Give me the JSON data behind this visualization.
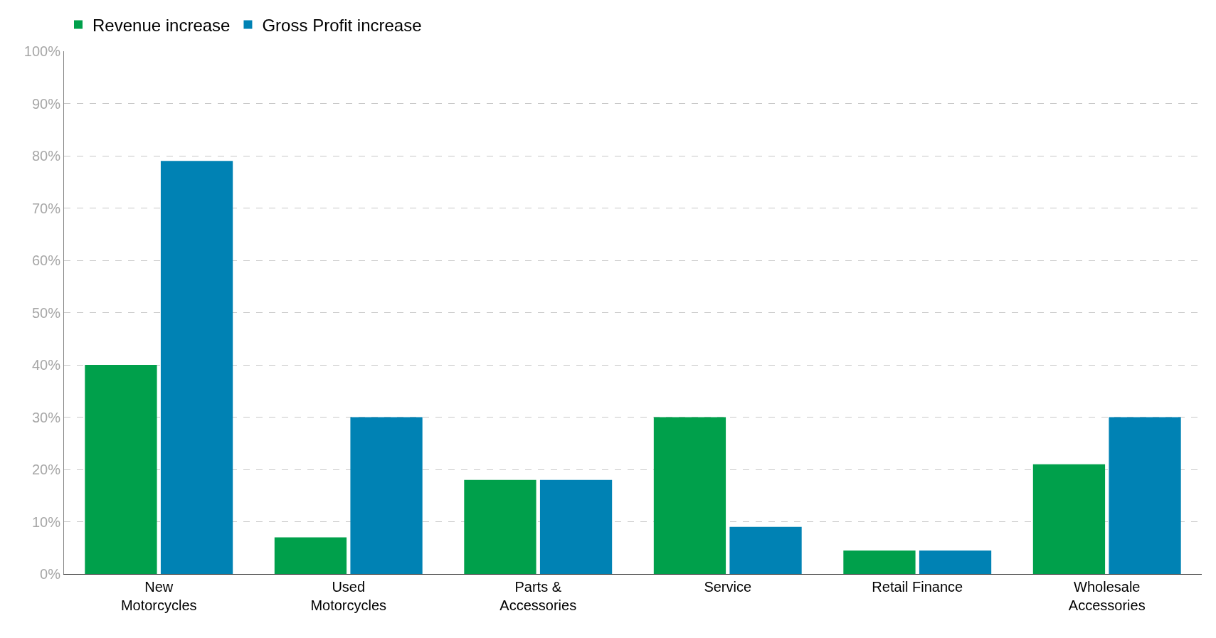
{
  "chart_data": {
    "type": "bar",
    "categories": [
      "New Motorcycles",
      "Used Motorcycles",
      "Parts & Accessories",
      "Service",
      "Retail Finance",
      "Wholesale Accessories"
    ],
    "series": [
      {
        "name": "Revenue increase",
        "color": "#00a04b",
        "values": [
          40,
          7,
          18,
          30,
          4.5,
          21
        ]
      },
      {
        "name": "Gross Profit increase",
        "color": "#0082b4",
        "values": [
          79,
          30,
          18,
          9,
          4.5,
          30
        ]
      }
    ],
    "ylim": [
      0,
      100
    ],
    "yticks": [
      {
        "value": 0,
        "label": "0%"
      },
      {
        "value": 10,
        "label": "10%"
      },
      {
        "value": 20,
        "label": "20%"
      },
      {
        "value": 30,
        "label": "30%"
      },
      {
        "value": 40,
        "label": "40%"
      },
      {
        "value": 50,
        "label": "50%"
      },
      {
        "value": 60,
        "label": "60%"
      },
      {
        "value": 70,
        "label": "70%"
      },
      {
        "value": 80,
        "label": "80%"
      },
      {
        "value": 90,
        "label": "90%"
      },
      {
        "value": 100,
        "label": "100%"
      }
    ],
    "grid": "y",
    "legend": "top left"
  }
}
